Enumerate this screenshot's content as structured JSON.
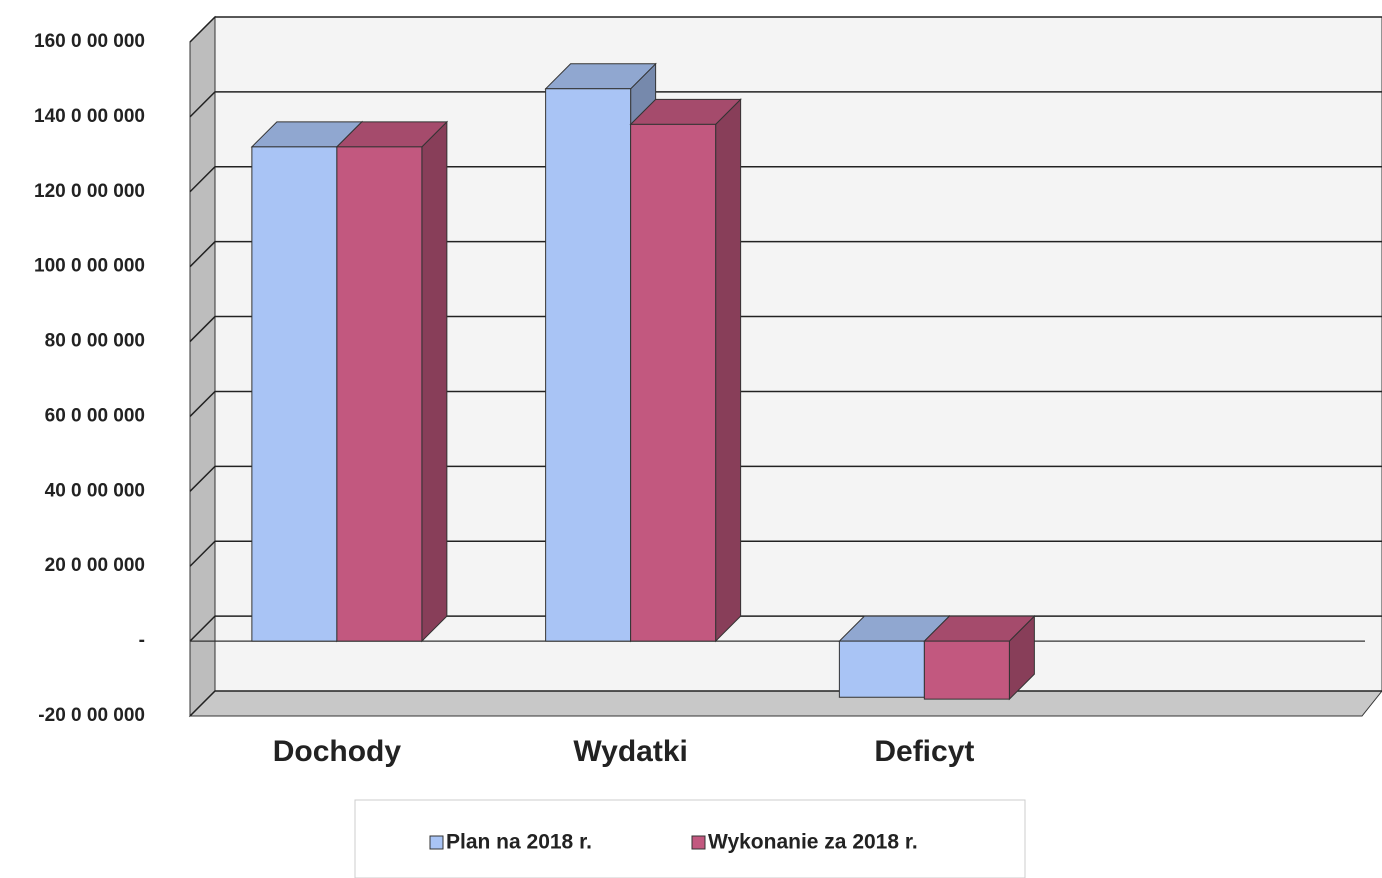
{
  "chart_data": {
    "type": "bar3d",
    "categories": [
      "Dochody",
      "Wydatki",
      "Deficyt"
    ],
    "series": [
      {
        "name": "Plan na 2018 r.",
        "color": "#a9c4f5",
        "values": [
          132000000,
          147500000,
          -15000000
        ]
      },
      {
        "name": "Wykonanie za 2018 r.",
        "color": "#c2587f",
        "values": [
          132000000,
          138000000,
          -15500000
        ]
      }
    ],
    "ylim": [
      -20000000,
      160000000
    ],
    "yticks": [
      {
        "value": -20000000,
        "label": "-20 0 00 000"
      },
      {
        "value": 0,
        "label": "-"
      },
      {
        "value": 20000000,
        "label": "20 0 00 000"
      },
      {
        "value": 40000000,
        "label": "40 0 00 000"
      },
      {
        "value": 60000000,
        "label": "60 0 00 000"
      },
      {
        "value": 80000000,
        "label": "80 0 00 000"
      },
      {
        "value": 100000000,
        "label": "100 0 00 000"
      },
      {
        "value": 120000000,
        "label": "120 0 00 000"
      },
      {
        "value": 140000000,
        "label": "140 0 00 000"
      },
      {
        "value": 160000000,
        "label": "160 0 00 000"
      }
    ],
    "grid": true
  }
}
